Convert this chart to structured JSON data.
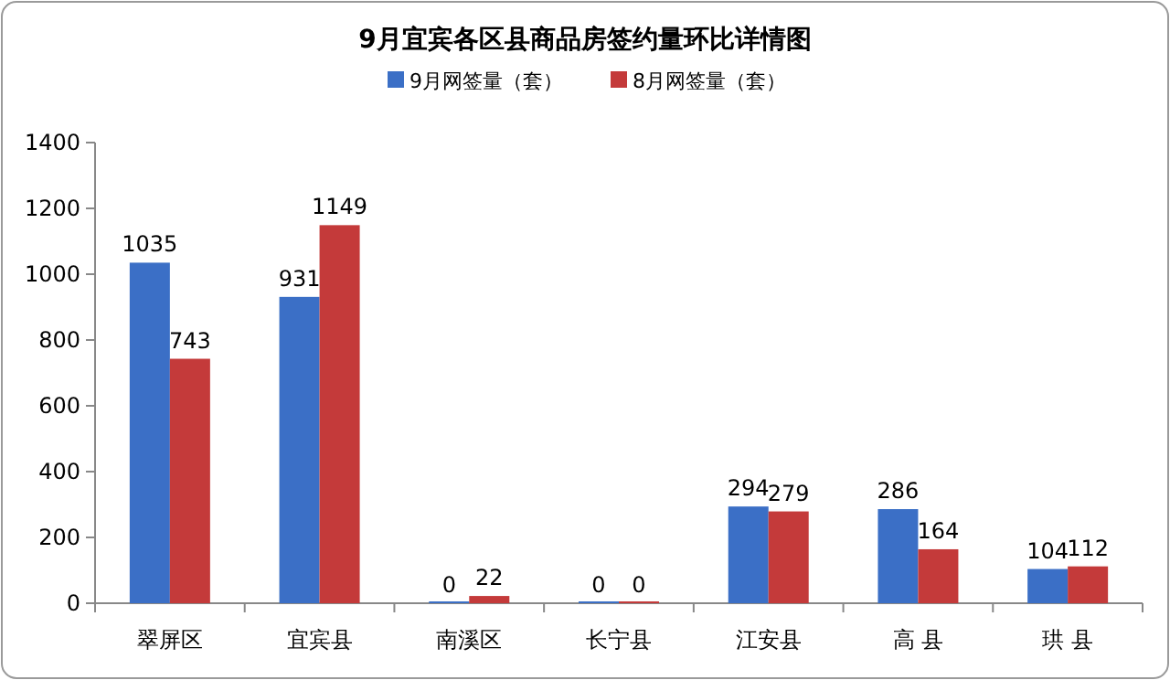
{
  "chart_data": {
    "type": "bar",
    "title": "9月宜宾各区县商品房签约量环比详情图",
    "categories": [
      "翠屏区",
      "宜宾县",
      "南溪区",
      "长宁县",
      "江安县",
      "高 县",
      "珙 县"
    ],
    "series": [
      {
        "name": "9月网签量（套）",
        "color": "#3b6fc6",
        "values": [
          1035,
          931,
          0,
          0,
          294,
          286,
          104
        ]
      },
      {
        "name": "8月网签量（套）",
        "color": "#c43a3a",
        "values": [
          743,
          1149,
          22,
          0,
          279,
          164,
          112
        ]
      }
    ],
    "ylim": [
      0,
      1400
    ],
    "yticks": [
      0,
      200,
      400,
      600,
      800,
      1000,
      1200,
      1400
    ],
    "legend": "top",
    "data_labels": true
  }
}
